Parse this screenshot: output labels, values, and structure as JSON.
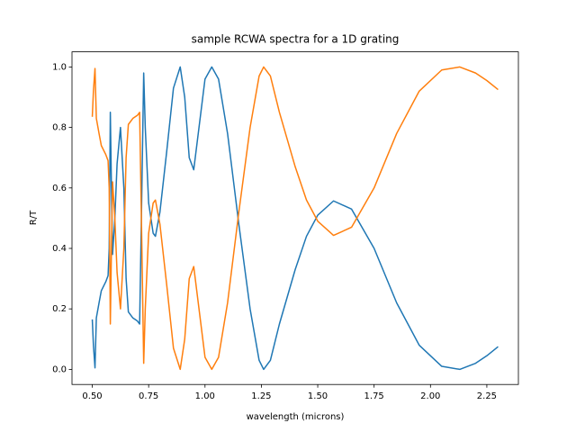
{
  "chart_data": {
    "type": "line",
    "title": "sample RCWA spectra for a 1D grating",
    "x_label": "wavelength (microns)",
    "y_label": "R/T",
    "x": [
      0.5,
      0.505,
      0.512,
      0.518,
      0.53,
      0.54,
      0.56,
      0.57,
      0.575,
      0.58,
      0.585,
      0.59,
      0.6,
      0.61,
      0.625,
      0.64,
      0.65,
      0.66,
      0.68,
      0.7,
      0.71,
      0.72,
      0.728,
      0.735,
      0.75,
      0.77,
      0.78,
      0.8,
      0.83,
      0.86,
      0.89,
      0.91,
      0.93,
      0.95,
      0.97,
      1.0,
      1.03,
      1.06,
      1.1,
      1.15,
      1.2,
      1.24,
      1.26,
      1.29,
      1.33,
      1.4,
      1.45,
      1.5,
      1.57,
      1.65,
      1.75,
      1.85,
      1.95,
      2.05,
      2.13,
      2.2,
      2.25,
      2.3
    ],
    "series": [
      {
        "color": "#1f77b4",
        "values": [
          0.165,
          0.08,
          0.005,
          0.17,
          0.22,
          0.26,
          0.29,
          0.31,
          0.4,
          0.85,
          0.6,
          0.38,
          0.5,
          0.68,
          0.8,
          0.6,
          0.3,
          0.19,
          0.17,
          0.16,
          0.15,
          0.6,
          0.98,
          0.8,
          0.55,
          0.45,
          0.44,
          0.52,
          0.72,
          0.93,
          1.0,
          0.9,
          0.7,
          0.66,
          0.78,
          0.96,
          1.0,
          0.96,
          0.78,
          0.48,
          0.2,
          0.03,
          0.0,
          0.03,
          0.15,
          0.33,
          0.44,
          0.51,
          0.557,
          0.53,
          0.4,
          0.22,
          0.08,
          0.01,
          0.0,
          0.02,
          0.045,
          0.075
        ]
      },
      {
        "color": "#ff7f0e",
        "values": [
          0.835,
          0.92,
          0.995,
          0.83,
          0.78,
          0.74,
          0.71,
          0.69,
          0.6,
          0.15,
          0.4,
          0.62,
          0.5,
          0.32,
          0.2,
          0.4,
          0.7,
          0.81,
          0.83,
          0.84,
          0.85,
          0.4,
          0.02,
          0.2,
          0.45,
          0.55,
          0.56,
          0.48,
          0.28,
          0.07,
          0.0,
          0.1,
          0.3,
          0.34,
          0.22,
          0.04,
          0.0,
          0.04,
          0.22,
          0.52,
          0.8,
          0.97,
          1.0,
          0.97,
          0.85,
          0.67,
          0.56,
          0.49,
          0.443,
          0.47,
          0.6,
          0.78,
          0.92,
          0.99,
          1.0,
          0.98,
          0.955,
          0.925
        ]
      }
    ],
    "xlim": [
      0.41,
      2.39
    ],
    "ylim": [
      -0.05,
      1.05
    ],
    "xticks": [
      {
        "value": 0.5,
        "label": "0.50"
      },
      {
        "value": 0.75,
        "label": "0.75"
      },
      {
        "value": 1.0,
        "label": "1.00"
      },
      {
        "value": 1.25,
        "label": "1.25"
      },
      {
        "value": 1.5,
        "label": "1.50"
      },
      {
        "value": 1.75,
        "label": "1.75"
      },
      {
        "value": 2.0,
        "label": "2.00"
      },
      {
        "value": 2.25,
        "label": "2.25"
      }
    ],
    "yticks": [
      {
        "value": 0,
        "label": "0.0"
      },
      {
        "value": 0.2,
        "label": "0.2"
      },
      {
        "value": 0.4,
        "label": "0.4"
      },
      {
        "value": 0.6,
        "label": "0.6"
      },
      {
        "value": 0.8,
        "label": "0.8"
      },
      {
        "value": 1.0,
        "label": "1.0"
      }
    ],
    "grid": false
  }
}
